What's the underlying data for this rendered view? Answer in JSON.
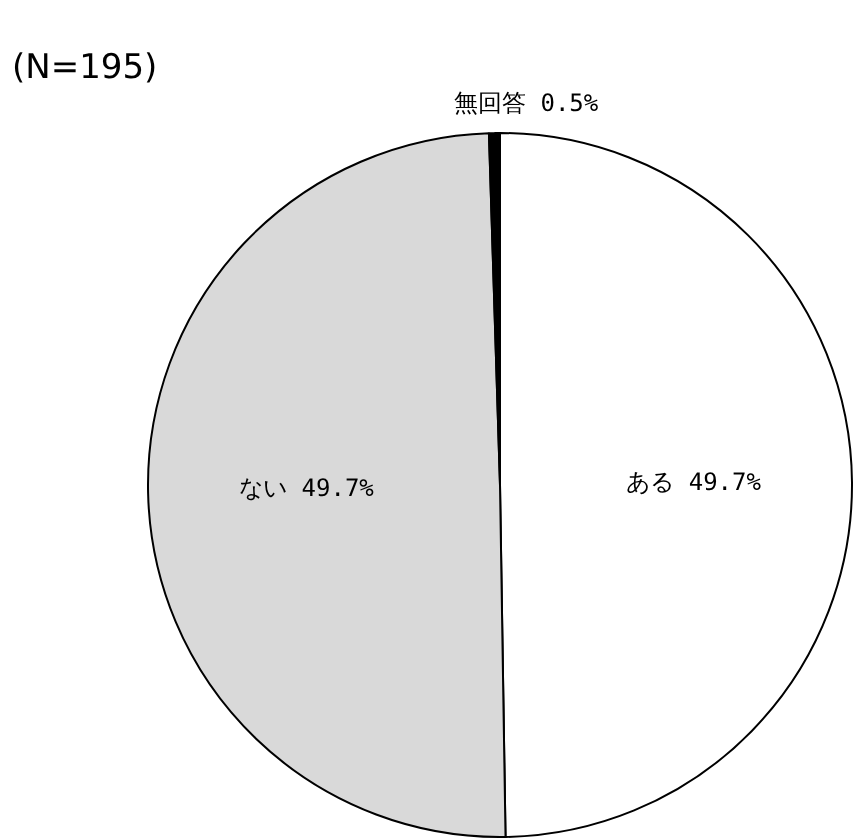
{
  "chart_data": {
    "type": "pie",
    "title": "(N=195)",
    "categories": [
      "ある",
      "ない",
      "無回答"
    ],
    "values": [
      49.7,
      49.7,
      0.5
    ],
    "value_labels": [
      "49.7%",
      "49.7%",
      "0.5%"
    ],
    "colors": [
      "#ffffff",
      "#d9d9d9",
      "#000000"
    ],
    "legend": false
  }
}
